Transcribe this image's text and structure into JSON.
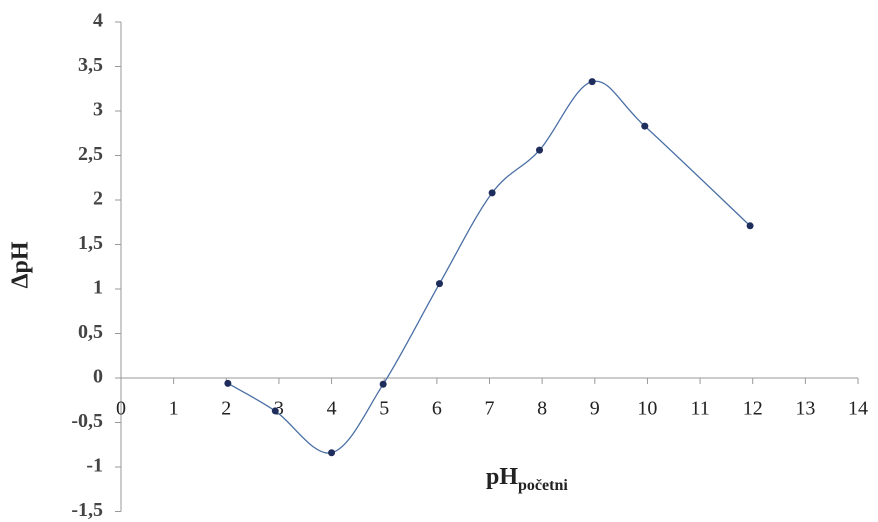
{
  "chart_data": {
    "type": "scatter",
    "y_label": "ΔpH",
    "x_label": "pH",
    "x_label_sub": "početni",
    "x": [
      2.03,
      2.93,
      4.0,
      4.98,
      6.05,
      7.05,
      7.95,
      8.95,
      9.95,
      11.95
    ],
    "series": [
      {
        "name": "ΔpH",
        "color": "#1f2d5c",
        "line_color": "#4a6fa5",
        "values": [
          -0.06,
          -0.37,
          -0.84,
          -0.07,
          1.06,
          2.08,
          2.56,
          3.33,
          2.83,
          1.71
        ]
      }
    ],
    "xlim": [
      0,
      14
    ],
    "xticks": [
      0,
      1,
      2,
      3,
      4,
      5,
      6,
      7,
      8,
      9,
      10,
      11,
      12,
      13,
      14
    ],
    "ylim": [
      -1.5,
      4
    ],
    "yticks": [
      {
        "value": -1.5,
        "label": "-1,5"
      },
      -1,
      {
        "value": -0.5,
        "label": "-0,5"
      },
      0,
      {
        "value": 0.5,
        "label": "0,5"
      },
      1,
      {
        "value": 1.5,
        "label": "1,5"
      },
      2,
      {
        "value": 2.5,
        "label": "2,5"
      },
      3,
      {
        "value": 3.5,
        "label": "3,5"
      },
      4
    ],
    "smooth": true
  }
}
